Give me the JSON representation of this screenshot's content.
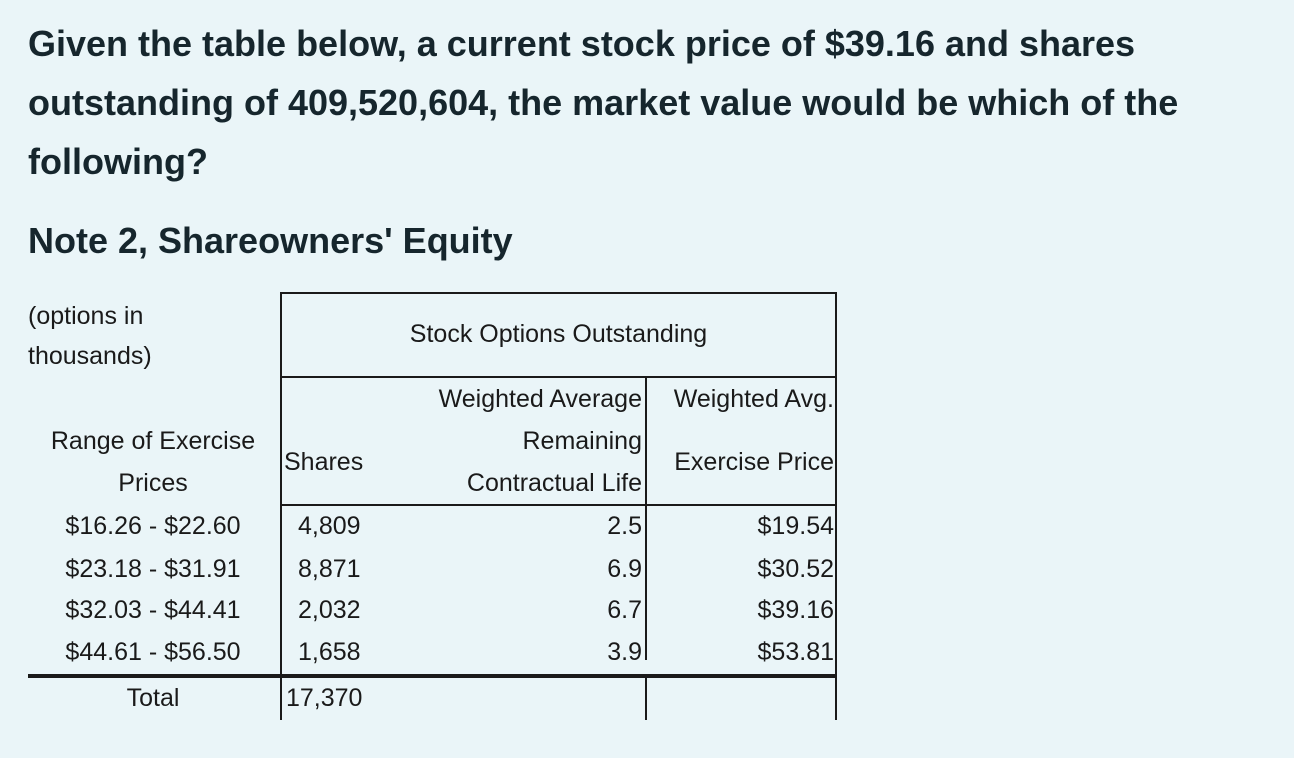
{
  "question": "Given the table below, a current stock price of $39.16 and shares outstanding of 409,520,604, the market value would be which of the following?",
  "note_title": "Note 2, Shareowners' Equity",
  "table": {
    "units_note": "(options in thousands)",
    "group_header": "Stock Options Outstanding",
    "col_range_header": "Range of Exercise Prices",
    "col_shares_header": "Shares",
    "col_life_header_line1": "Weighted Average",
    "col_life_header_line2": "Remaining",
    "col_life_header_line3": "Contractual Life",
    "col_price_header_line1": "Weighted Avg.",
    "col_price_header_line2": "Exercise Price",
    "rows": [
      {
        "range": "$16.26 - $22.60",
        "shares": "4,809",
        "life": "2.5",
        "price": "$19.54"
      },
      {
        "range": "$23.18 - $31.91",
        "shares": "8,871",
        "life": "6.9",
        "price": "$30.52"
      },
      {
        "range": "$32.03 - $44.41",
        "shares": "2,032",
        "life": "6.7",
        "price": "$39.16"
      },
      {
        "range": "$44.61 - $56.50",
        "shares": "1,658",
        "life": "3.9",
        "price": "$53.81"
      }
    ],
    "total_label": "Total",
    "total_shares": "17,370"
  }
}
